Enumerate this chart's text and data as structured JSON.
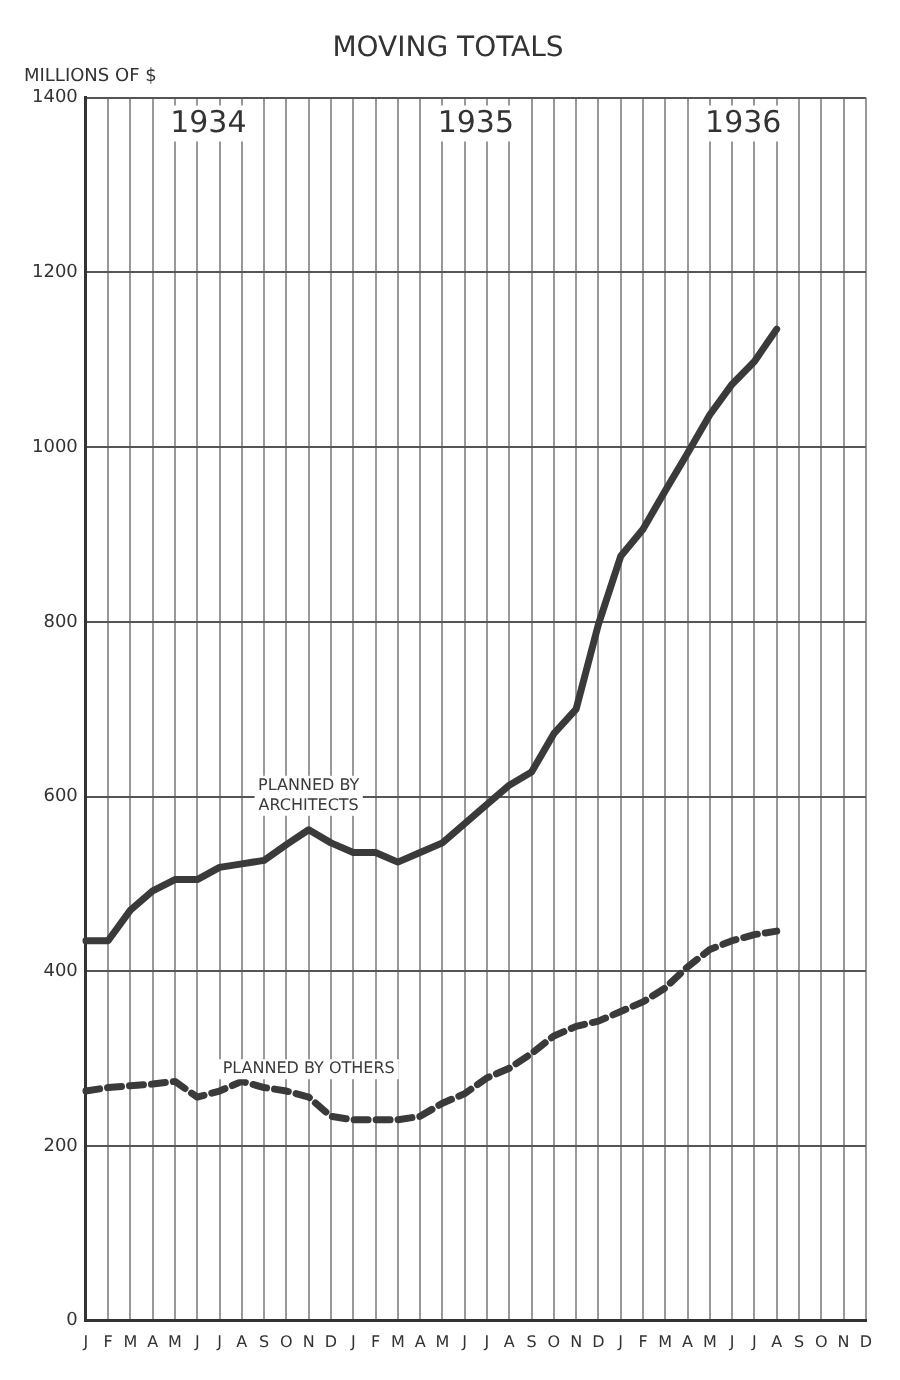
{
  "chart_data": {
    "type": "line",
    "title": "MOVING TOTALS",
    "ylabel": "MILLIONS OF $",
    "categories": [
      "J",
      "F",
      "M",
      "A",
      "M",
      "J",
      "J",
      "A",
      "S",
      "O",
      "N",
      "D",
      "J",
      "F",
      "M",
      "A",
      "M",
      "J",
      "J",
      "A",
      "S",
      "O",
      "N",
      "D",
      "J",
      "F",
      "M",
      "A",
      "M",
      "J",
      "J",
      "A",
      "S",
      "O",
      "N",
      "D"
    ],
    "series": [
      {
        "name": "PLANNED BY ARCHITECTS",
        "color": "#3a3a3a",
        "line_style": "solid",
        "values": [
          435,
          435,
          470,
          492,
          505,
          505,
          519,
          523,
          527,
          545,
          562,
          547,
          536,
          536,
          525,
          536,
          547,
          569,
          591,
          613,
          628,
          672,
          700,
          797,
          875,
          906,
          950,
          993,
          1037,
          1072,
          1098,
          1135,
          null,
          null,
          null,
          null
        ]
      },
      {
        "name": "PLANNED BY OTHERS",
        "color": "#3a3a3a",
        "line_style": "dashed",
        "values": [
          263,
          267,
          269,
          271,
          274,
          256,
          263,
          274,
          267,
          263,
          256,
          234,
          230,
          230,
          230,
          234,
          249,
          260,
          278,
          289,
          306,
          326,
          337,
          343,
          354,
          365,
          381,
          405,
          425,
          435,
          442,
          446,
          null,
          null,
          null,
          null
        ]
      }
    ],
    "annotations": [
      "1934",
      "1935",
      "1936"
    ],
    "ylim": [
      0,
      1400
    ],
    "yticks": [
      0,
      200,
      400,
      600,
      800,
      1000,
      1200,
      1400
    ],
    "grid": true,
    "legend": false,
    "marker": "none"
  }
}
